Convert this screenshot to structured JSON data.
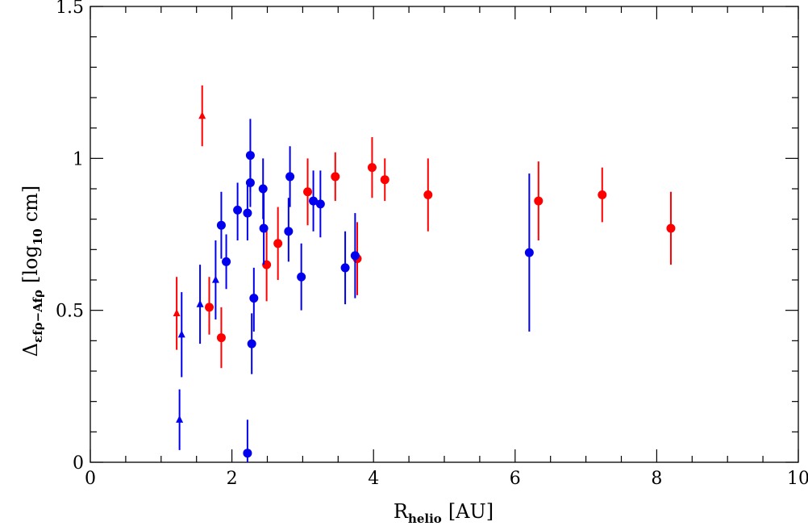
{
  "chart_data": {
    "type": "scatter",
    "title": "",
    "xlabel": {
      "main": "R",
      "sub": "helio",
      "unit": "[AU]"
    },
    "ylabel": {
      "main": "Δ",
      "sub": "εfρ−Afρ",
      "unit_open": "[log",
      "unit_sub": "10",
      "unit_close": "cm]"
    },
    "xlim": [
      0,
      10
    ],
    "ylim": [
      0,
      1.5
    ],
    "xticks": [
      0,
      2,
      4,
      6,
      8,
      10
    ],
    "xtick_labels": [
      "0",
      "2",
      "4",
      "6",
      "8",
      "10"
    ],
    "yticks": [
      0,
      0.5,
      1,
      1.5
    ],
    "ytick_labels": [
      "0",
      "0.5",
      "1",
      "1.5"
    ],
    "x_minor_step": 0.5,
    "y_minor_step": 0.1,
    "grid": false,
    "colors": {
      "red": "#ff0000",
      "blue": "#0000ee",
      "axis": "#000000"
    },
    "series": [
      {
        "name": "red-circles",
        "color": "#ff0000",
        "marker": "circle",
        "points": [
          {
            "x": 1.68,
            "y": 0.51,
            "lo": 0.42,
            "hi": 0.61
          },
          {
            "x": 1.85,
            "y": 0.41,
            "lo": 0.31,
            "hi": 0.51
          },
          {
            "x": 2.49,
            "y": 0.65,
            "lo": 0.53,
            "hi": 0.77
          },
          {
            "x": 2.65,
            "y": 0.72,
            "lo": 0.6,
            "hi": 0.84
          },
          {
            "x": 3.07,
            "y": 0.89,
            "lo": 0.78,
            "hi": 1.0
          },
          {
            "x": 3.46,
            "y": 0.94,
            "lo": 0.86,
            "hi": 1.02
          },
          {
            "x": 3.77,
            "y": 0.67,
            "lo": 0.55,
            "hi": 0.79
          },
          {
            "x": 3.98,
            "y": 0.97,
            "lo": 0.87,
            "hi": 1.07
          },
          {
            "x": 4.16,
            "y": 0.93,
            "lo": 0.86,
            "hi": 1.0
          },
          {
            "x": 4.77,
            "y": 0.88,
            "lo": 0.76,
            "hi": 1.0
          },
          {
            "x": 6.33,
            "y": 0.86,
            "lo": 0.73,
            "hi": 0.99
          },
          {
            "x": 7.23,
            "y": 0.88,
            "lo": 0.79,
            "hi": 0.97
          },
          {
            "x": 8.2,
            "y": 0.77,
            "lo": 0.65,
            "hi": 0.89
          }
        ]
      },
      {
        "name": "red-triangles",
        "color": "#ff0000",
        "marker": "triangle",
        "points": [
          {
            "x": 1.22,
            "y": 0.49,
            "lo": 0.37,
            "hi": 0.61
          },
          {
            "x": 1.58,
            "y": 1.14,
            "lo": 1.04,
            "hi": 1.24
          }
        ]
      },
      {
        "name": "blue-circles",
        "color": "#0000ee",
        "marker": "circle",
        "points": [
          {
            "x": 1.85,
            "y": 0.78,
            "lo": 0.67,
            "hi": 0.89
          },
          {
            "x": 1.92,
            "y": 0.66,
            "lo": 0.57,
            "hi": 0.75
          },
          {
            "x": 2.08,
            "y": 0.83,
            "lo": 0.73,
            "hi": 0.92
          },
          {
            "x": 2.22,
            "y": 0.82,
            "lo": 0.73,
            "hi": 0.91
          },
          {
            "x": 2.22,
            "y": 0.03,
            "lo": 0.0,
            "hi": 0.14
          },
          {
            "x": 2.26,
            "y": 1.01,
            "lo": 0.89,
            "hi": 1.13
          },
          {
            "x": 2.26,
            "y": 0.92,
            "lo": 0.84,
            "hi": 1.0
          },
          {
            "x": 2.28,
            "y": 0.39,
            "lo": 0.29,
            "hi": 0.49
          },
          {
            "x": 2.31,
            "y": 0.54,
            "lo": 0.43,
            "hi": 0.64
          },
          {
            "x": 2.44,
            "y": 0.9,
            "lo": 0.8,
            "hi": 1.0
          },
          {
            "x": 2.45,
            "y": 0.77,
            "lo": 0.65,
            "hi": 0.89
          },
          {
            "x": 2.8,
            "y": 0.76,
            "lo": 0.66,
            "hi": 0.87
          },
          {
            "x": 2.82,
            "y": 0.94,
            "lo": 0.84,
            "hi": 1.04
          },
          {
            "x": 2.98,
            "y": 0.61,
            "lo": 0.5,
            "hi": 0.72
          },
          {
            "x": 3.15,
            "y": 0.86,
            "lo": 0.76,
            "hi": 0.96
          },
          {
            "x": 3.25,
            "y": 0.85,
            "lo": 0.74,
            "hi": 0.96
          },
          {
            "x": 3.6,
            "y": 0.64,
            "lo": 0.52,
            "hi": 0.76
          },
          {
            "x": 3.74,
            "y": 0.68,
            "lo": 0.54,
            "hi": 0.82
          },
          {
            "x": 6.2,
            "y": 0.69,
            "lo": 0.43,
            "hi": 0.95
          }
        ]
      },
      {
        "name": "blue-triangles",
        "color": "#0000ee",
        "marker": "triangle",
        "points": [
          {
            "x": 1.26,
            "y": 0.14,
            "lo": 0.04,
            "hi": 0.24
          },
          {
            "x": 1.29,
            "y": 0.42,
            "lo": 0.28,
            "hi": 0.56
          },
          {
            "x": 1.55,
            "y": 0.52,
            "lo": 0.39,
            "hi": 0.65
          },
          {
            "x": 1.77,
            "y": 0.6,
            "lo": 0.47,
            "hi": 0.73
          }
        ]
      }
    ]
  }
}
